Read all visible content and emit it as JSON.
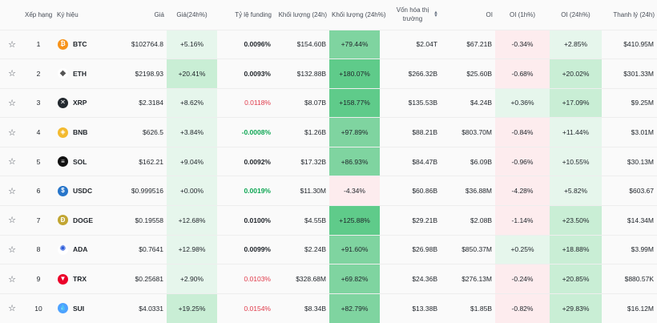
{
  "headers": {
    "rank": "Xếp hạng",
    "symbol": "Ký hiệu",
    "price": "Giá",
    "price_change": "Giá(24h%)",
    "funding": "Tỷ lệ funding",
    "volume": "Khối lượng (24h)",
    "volume_change": "Khối lượng (24h%)",
    "mcap": "Vốn hóa thị trường",
    "oi": "OI",
    "oi_1h": "OI (1h%)",
    "oi_24h": "OI (24h%)",
    "liq": "Thanh lý (24h)"
  },
  "colors": {
    "green_light": "#e6f6ec",
    "green_mid": "#c9eed5",
    "green_strong": "#7fd4a0",
    "green_stronger": "#5fcb8a",
    "red_light": "#fdecee",
    "neg_text": "#e03a4a",
    "pos_text": "#0ea653"
  },
  "rows": [
    {
      "rank": "1",
      "symbol": "BTC",
      "icon": "btc-icon",
      "icon_color": "#f7931a",
      "icon_glyph": "₿",
      "price": "$102764.8",
      "price_change": "+5.16%",
      "funding": "0.0096%",
      "funding_tone": "neutral",
      "volume": "$154.60B",
      "volume_change": "+79.44%",
      "mcap": "$2.04T",
      "oi": "$67.21B",
      "oi_1h": "-0.34%",
      "oi_24h": "+2.85%",
      "liq": "$410.95M"
    },
    {
      "rank": "2",
      "symbol": "ETH",
      "icon": "eth-icon",
      "icon_color": "#ffffff",
      "icon_glyph": "◆",
      "price": "$2198.93",
      "price_change": "+20.41%",
      "funding": "0.0093%",
      "funding_tone": "neutral",
      "volume": "$132.88B",
      "volume_change": "+180.07%",
      "mcap": "$266.32B",
      "oi": "$25.60B",
      "oi_1h": "-0.68%",
      "oi_24h": "+20.02%",
      "liq": "$301.33M"
    },
    {
      "rank": "3",
      "symbol": "XRP",
      "icon": "xrp-icon",
      "icon_color": "#23292f",
      "icon_glyph": "✕",
      "price": "$2.3184",
      "price_change": "+8.62%",
      "funding": "0.0118%",
      "funding_tone": "neg",
      "volume": "$8.07B",
      "volume_change": "+158.77%",
      "mcap": "$135.53B",
      "oi": "$4.24B",
      "oi_1h": "+0.36%",
      "oi_24h": "+17.09%",
      "liq": "$9.25M"
    },
    {
      "rank": "4",
      "symbol": "BNB",
      "icon": "bnb-icon",
      "icon_color": "#f3ba2f",
      "icon_glyph": "◈",
      "price": "$626.5",
      "price_change": "+3.84%",
      "funding": "-0.0008%",
      "funding_tone": "pos",
      "volume": "$1.26B",
      "volume_change": "+97.89%",
      "mcap": "$88.21B",
      "oi": "$803.70M",
      "oi_1h": "-0.84%",
      "oi_24h": "+11.44%",
      "liq": "$3.01M"
    },
    {
      "rank": "5",
      "symbol": "SOL",
      "icon": "sol-icon",
      "icon_color": "#111111",
      "icon_glyph": "≡",
      "price": "$162.21",
      "price_change": "+9.04%",
      "funding": "0.0092%",
      "funding_tone": "neutral",
      "volume": "$17.32B",
      "volume_change": "+86.93%",
      "mcap": "$84.47B",
      "oi": "$6.09B",
      "oi_1h": "-0.96%",
      "oi_24h": "+10.55%",
      "liq": "$30.13M"
    },
    {
      "rank": "6",
      "symbol": "USDC",
      "icon": "usdc-icon",
      "icon_color": "#2775ca",
      "icon_glyph": "$",
      "price": "$0.999516",
      "price_change": "+0.00%",
      "funding": "0.0019%",
      "funding_tone": "pos",
      "volume": "$11.30M",
      "volume_change": "-4.34%",
      "mcap": "$60.86B",
      "oi": "$36.88M",
      "oi_1h": "-4.28%",
      "oi_24h": "+5.82%",
      "liq": "$603.67"
    },
    {
      "rank": "7",
      "symbol": "DOGE",
      "icon": "doge-icon",
      "icon_color": "#c2a633",
      "icon_glyph": "Ð",
      "price": "$0.19558",
      "price_change": "+12.68%",
      "funding": "0.0100%",
      "funding_tone": "neutral",
      "volume": "$4.55B",
      "volume_change": "+125.88%",
      "mcap": "$29.21B",
      "oi": "$2.08B",
      "oi_1h": "-1.14%",
      "oi_24h": "+23.50%",
      "liq": "$14.34M"
    },
    {
      "rank": "8",
      "symbol": "ADA",
      "icon": "ada-icon",
      "icon_color": "#ffffff",
      "icon_glyph": "✺",
      "price": "$0.7641",
      "price_change": "+12.98%",
      "funding": "0.0099%",
      "funding_tone": "neutral",
      "volume": "$2.24B",
      "volume_change": "+91.60%",
      "mcap": "$26.98B",
      "oi": "$850.37M",
      "oi_1h": "+0.25%",
      "oi_24h": "+18.88%",
      "liq": "$3.99M"
    },
    {
      "rank": "9",
      "symbol": "TRX",
      "icon": "trx-icon",
      "icon_color": "#eb0029",
      "icon_glyph": "▼",
      "price": "$0.25681",
      "price_change": "+2.90%",
      "funding": "0.0103%",
      "funding_tone": "neg",
      "volume": "$328.68M",
      "volume_change": "+69.82%",
      "mcap": "$24.36B",
      "oi": "$276.13M",
      "oi_1h": "-0.24%",
      "oi_24h": "+20.85%",
      "liq": "$880.57K"
    },
    {
      "rank": "10",
      "symbol": "SUI",
      "icon": "sui-icon",
      "icon_color": "#4da2ff",
      "icon_glyph": "💧",
      "price": "$4.0331",
      "price_change": "+19.25%",
      "funding": "0.0154%",
      "funding_tone": "neg",
      "volume": "$8.34B",
      "volume_change": "+82.79%",
      "mcap": "$13.38B",
      "oi": "$1.85B",
      "oi_1h": "-0.82%",
      "oi_24h": "+29.83%",
      "liq": "$16.12M"
    }
  ]
}
